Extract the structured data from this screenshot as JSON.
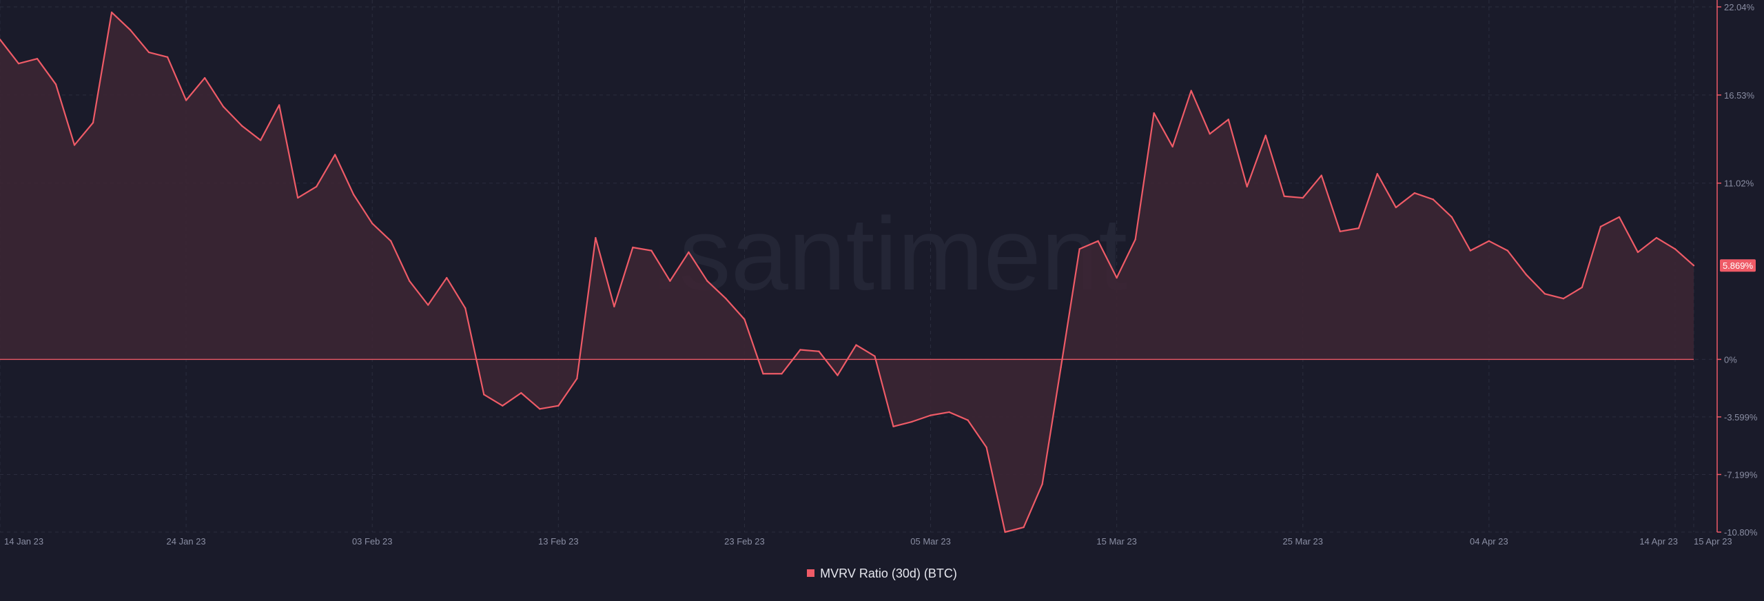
{
  "colors": {
    "background": "#1a1b2a",
    "grid": "#2b2d3e",
    "line": "#ef5b67",
    "fill": "#3d2634",
    "axis_text": "#8a8ea3",
    "watermark": "#242636",
    "badge": "#ef5b67"
  },
  "watermark": ".santiment",
  "chart_data": {
    "type": "area",
    "series": [
      {
        "name": "MVRV Ratio (30d) (BTC)",
        "x": [
          "2023-01-14",
          "2023-01-15",
          "2023-01-16",
          "2023-01-17",
          "2023-01-18",
          "2023-01-19",
          "2023-01-20",
          "2023-01-21",
          "2023-01-22",
          "2023-01-23",
          "2023-01-24",
          "2023-01-25",
          "2023-01-26",
          "2023-01-27",
          "2023-01-28",
          "2023-01-29",
          "2023-01-30",
          "2023-01-31",
          "2023-02-01",
          "2023-02-02",
          "2023-02-03",
          "2023-02-04",
          "2023-02-05",
          "2023-02-06",
          "2023-02-07",
          "2023-02-08",
          "2023-02-09",
          "2023-02-10",
          "2023-02-11",
          "2023-02-12",
          "2023-02-13",
          "2023-02-14",
          "2023-02-15",
          "2023-02-16",
          "2023-02-17",
          "2023-02-18",
          "2023-02-19",
          "2023-02-20",
          "2023-02-21",
          "2023-02-22",
          "2023-02-23",
          "2023-02-24",
          "2023-02-25",
          "2023-02-26",
          "2023-02-27",
          "2023-02-28",
          "2023-03-01",
          "2023-03-02",
          "2023-03-03",
          "2023-03-04",
          "2023-03-05",
          "2023-03-06",
          "2023-03-07",
          "2023-03-08",
          "2023-03-09",
          "2023-03-10",
          "2023-03-11",
          "2023-03-12",
          "2023-03-13",
          "2023-03-14",
          "2023-03-15",
          "2023-03-16",
          "2023-03-17",
          "2023-03-18",
          "2023-03-19",
          "2023-03-20",
          "2023-03-21",
          "2023-03-22",
          "2023-03-23",
          "2023-03-24",
          "2023-03-25",
          "2023-03-26",
          "2023-03-27",
          "2023-03-28",
          "2023-03-29",
          "2023-03-30",
          "2023-03-31",
          "2023-04-01",
          "2023-04-02",
          "2023-04-03",
          "2023-04-04",
          "2023-04-05",
          "2023-04-06",
          "2023-04-07",
          "2023-04-08",
          "2023-04-09",
          "2023-04-10",
          "2023-04-11",
          "2023-04-12",
          "2023-04-13",
          "2023-04-14",
          "2023-04-15"
        ],
        "values": [
          20.0,
          18.5,
          18.8,
          17.2,
          13.4,
          14.8,
          21.7,
          20.6,
          19.2,
          18.9,
          16.2,
          17.6,
          15.8,
          14.6,
          13.7,
          15.9,
          10.1,
          10.8,
          12.8,
          10.3,
          8.5,
          7.4,
          4.9,
          3.4,
          5.1,
          3.2,
          -2.2,
          -2.9,
          -2.1,
          -3.1,
          -2.9,
          -1.2,
          7.6,
          3.3,
          7.0,
          6.8,
          4.9,
          6.7,
          4.9,
          3.8,
          2.5,
          -0.9,
          -0.9,
          0.6,
          0.5,
          -1.0,
          0.9,
          0.2,
          -4.2,
          -3.9,
          -3.5,
          -3.3,
          -3.8,
          -5.5,
          -10.8,
          -10.5,
          -7.8,
          -0.5,
          6.9,
          7.4,
          5.1,
          7.5,
          15.4,
          13.3,
          16.8,
          14.1,
          15.0,
          10.8,
          14.0,
          10.2,
          10.1,
          11.5,
          8.0,
          8.2,
          11.6,
          9.5,
          10.4,
          10.0,
          8.9,
          6.8,
          7.4,
          6.8,
          5.3,
          4.1,
          3.8,
          4.5,
          8.3,
          8.9,
          6.7,
          7.6,
          6.9,
          5.869
        ]
      }
    ],
    "current_value_label": "5.869%",
    "ylim": [
      -10.8,
      22.04
    ],
    "y_ticks": [
      {
        "value": 22.04,
        "label": "22.04%"
      },
      {
        "value": 16.53,
        "label": "16.53%"
      },
      {
        "value": 11.02,
        "label": "11.02%"
      },
      {
        "value": 0,
        "label": "0%"
      },
      {
        "value": -3.599,
        "label": "-3.599%"
      },
      {
        "value": -7.199,
        "label": "-7.199%"
      },
      {
        "value": -10.8,
        "label": "-10.80%"
      }
    ],
    "x_ticks": [
      {
        "date": "2023-01-14",
        "label": "14 Jan 23"
      },
      {
        "date": "2023-01-24",
        "label": "24 Jan 23"
      },
      {
        "date": "2023-02-03",
        "label": "03 Feb 23"
      },
      {
        "date": "2023-02-13",
        "label": "13 Feb 23"
      },
      {
        "date": "2023-02-23",
        "label": "23 Feb 23"
      },
      {
        "date": "2023-03-05",
        "label": "05 Mar 23"
      },
      {
        "date": "2023-03-15",
        "label": "15 Mar 23"
      },
      {
        "date": "2023-03-25",
        "label": "25 Mar 23"
      },
      {
        "date": "2023-04-04",
        "label": "04 Apr 23"
      },
      {
        "date": "2023-04-14",
        "label": "14 Apr 23"
      },
      {
        "date": "2023-04-15",
        "label": "15 Apr 23"
      }
    ],
    "grid": true,
    "legend_position": "bottom-center",
    "title": "",
    "xlabel": "",
    "ylabel": ""
  },
  "legend": {
    "label": "MVRV Ratio (30d) (BTC)"
  }
}
